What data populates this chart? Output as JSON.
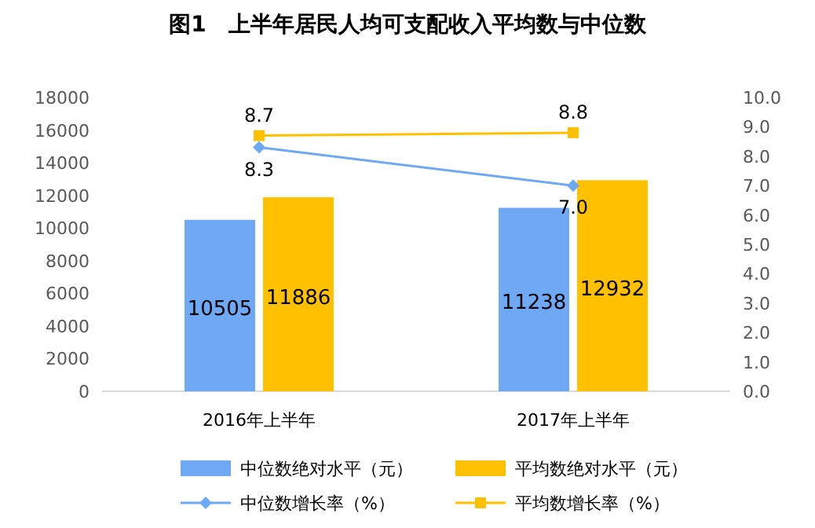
{
  "chart_data": {
    "type": "bar",
    "title": "图1　上半年居民人均可支配收入平均数与中位数",
    "categories": [
      "2016年上半年",
      "2017年上半年"
    ],
    "series": [
      {
        "name": "中位数绝对水平（元）",
        "color": "#6fa8f5",
        "values": [
          10505,
          11238
        ]
      },
      {
        "name": "平均数绝对水平（元）",
        "color": "#ffc000",
        "values": [
          11886,
          12932
        ]
      },
      {
        "name": "中位数增长率（%）",
        "type": "line",
        "axis": "y2",
        "marker": "diamond",
        "color": "#6fa8f5",
        "values": [
          8.3,
          7.0
        ],
        "value_labels": [
          "8.3",
          "7.0"
        ]
      },
      {
        "name": "平均数增长率（%）",
        "type": "line",
        "axis": "y2",
        "marker": "square",
        "color": "#ffc000",
        "values": [
          8.7,
          8.8
        ],
        "value_labels": [
          "8.7",
          "8.8"
        ]
      }
    ],
    "data_labels": true,
    "ylim": [
      0,
      18000
    ],
    "yticks": [
      0,
      2000,
      4000,
      6000,
      8000,
      10000,
      12000,
      14000,
      16000,
      18000
    ],
    "y2lim": [
      0,
      10
    ],
    "y2ticks": [
      {
        "value": 0,
        "label": "0.0"
      },
      {
        "value": 1,
        "label": "1.0"
      },
      {
        "value": 2,
        "label": "2.0"
      },
      {
        "value": 3,
        "label": "3.0"
      },
      {
        "value": 4,
        "label": "4.0"
      },
      {
        "value": 5,
        "label": "5.0"
      },
      {
        "value": 6,
        "label": "6.0"
      },
      {
        "value": 7,
        "label": "7.0"
      },
      {
        "value": 8,
        "label": "8.0"
      },
      {
        "value": 9,
        "label": "9.0"
      },
      {
        "value": 10,
        "label": "10.0"
      }
    ],
    "legend": "bottom"
  }
}
